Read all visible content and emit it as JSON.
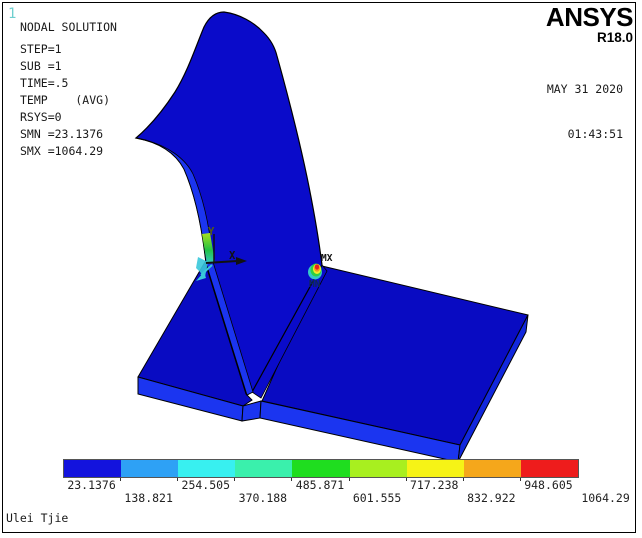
{
  "window": {
    "plot_number": "1",
    "username": "Ulei Tjie"
  },
  "annotation": {
    "lines": [
      "NODAL SOLUTION",
      "STEP=1",
      "SUB =1",
      "TIME=.5",
      "TEMP    (AVG)",
      "RSYS=0",
      "SMN =23.1376",
      "SMX =1064.29"
    ]
  },
  "brand": {
    "name": "ANSYS",
    "release": "R18.0",
    "date": "MAY 31 2020",
    "time": "01:43:51"
  },
  "model": {
    "labels": {
      "max": "MX",
      "min": "MN",
      "axis_x": "X",
      "axis_y": "Y"
    },
    "colors": {
      "face": "#0a0bca",
      "base_face": "#090bc2",
      "edge_face": "#1b35f0",
      "edge_face_dark": "#1228dd",
      "outline": "#000000",
      "hot_red": "#e41f1f",
      "hot_orange": "#f59a1a",
      "hot_yellow": "#f2ee2c",
      "hot_green": "#2fd043",
      "hot_cyan": "#35c8c8",
      "grad_top": "#a8e01e",
      "grad_bottom": "#22c245",
      "axis_z_cyan": "#38c8da",
      "axis_y_label": "#56610a",
      "axis_black": "#111111",
      "min_label_color": "#0e2a52"
    }
  },
  "colorbar": {
    "values": [
      "23.1376",
      "138.821",
      "254.505",
      "370.188",
      "485.871",
      "601.555",
      "717.238",
      "832.922",
      "948.605",
      "1064.29"
    ],
    "colors": [
      "#1313dd",
      "#2ea1f5",
      "#38f0f0",
      "#3af0ac",
      "#1fdd1f",
      "#a8ef1f",
      "#f6f316",
      "#f5a71b",
      "#ee1c1c"
    ],
    "min": 23.1376,
    "max": 1064.29
  }
}
